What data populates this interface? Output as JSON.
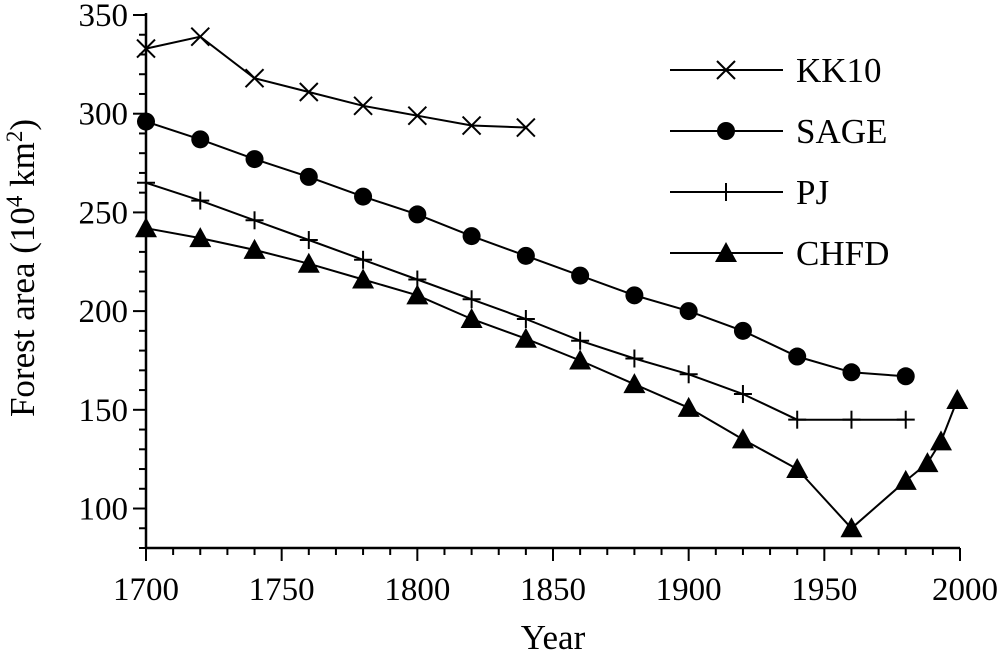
{
  "chart_data": {
    "type": "line",
    "title": "",
    "xlabel": "Year",
    "ylabel_main": "Forest area (10",
    "ylabel_sup1": "4",
    "ylabel_unit": " km",
    "ylabel_sup2": "2",
    "ylabel_close": ")",
    "xlim": [
      1700,
      2000
    ],
    "ylim": [
      80,
      350
    ],
    "xticks": [
      1700,
      1750,
      1800,
      1850,
      1900,
      1950,
      2000
    ],
    "yticks": [
      100,
      150,
      200,
      250,
      300,
      350
    ],
    "x_minor_step": 10,
    "y_minor_step": 10,
    "grid": false,
    "legend_position": "top-right",
    "series": [
      {
        "name": "KK10",
        "marker": "x",
        "points": [
          [
            1700,
            333
          ],
          [
            1720,
            339
          ],
          [
            1740,
            318
          ],
          [
            1760,
            311
          ],
          [
            1780,
            304
          ],
          [
            1800,
            299
          ],
          [
            1820,
            294
          ],
          [
            1840,
            293
          ]
        ]
      },
      {
        "name": "SAGE",
        "marker": "circle",
        "points": [
          [
            1700,
            296
          ],
          [
            1720,
            287
          ],
          [
            1740,
            277
          ],
          [
            1760,
            268
          ],
          [
            1780,
            258
          ],
          [
            1800,
            249
          ],
          [
            1820,
            238
          ],
          [
            1840,
            228
          ],
          [
            1860,
            218
          ],
          [
            1880,
            208
          ],
          [
            1900,
            200
          ],
          [
            1920,
            190
          ],
          [
            1940,
            177
          ],
          [
            1960,
            169
          ],
          [
            1980,
            167
          ]
        ]
      },
      {
        "name": "PJ",
        "marker": "plus",
        "points": [
          [
            1700,
            265
          ],
          [
            1720,
            256
          ],
          [
            1740,
            246
          ],
          [
            1760,
            236
          ],
          [
            1780,
            226
          ],
          [
            1800,
            216
          ],
          [
            1820,
            206
          ],
          [
            1840,
            196
          ],
          [
            1860,
            185
          ],
          [
            1880,
            176
          ],
          [
            1900,
            168
          ],
          [
            1920,
            158
          ],
          [
            1940,
            145
          ],
          [
            1960,
            145
          ],
          [
            1980,
            145
          ]
        ]
      },
      {
        "name": "CHFD",
        "marker": "triangle",
        "points": [
          [
            1700,
            242
          ],
          [
            1720,
            237
          ],
          [
            1740,
            231
          ],
          [
            1760,
            224
          ],
          [
            1780,
            216
          ],
          [
            1800,
            208
          ],
          [
            1820,
            196
          ],
          [
            1840,
            186
          ],
          [
            1860,
            175
          ],
          [
            1880,
            163
          ],
          [
            1900,
            151
          ],
          [
            1920,
            135
          ],
          [
            1940,
            120
          ],
          [
            1960,
            90
          ],
          [
            1980,
            114
          ],
          [
            1988,
            123
          ],
          [
            1993,
            134
          ],
          [
            1999,
            155
          ]
        ]
      }
    ]
  }
}
